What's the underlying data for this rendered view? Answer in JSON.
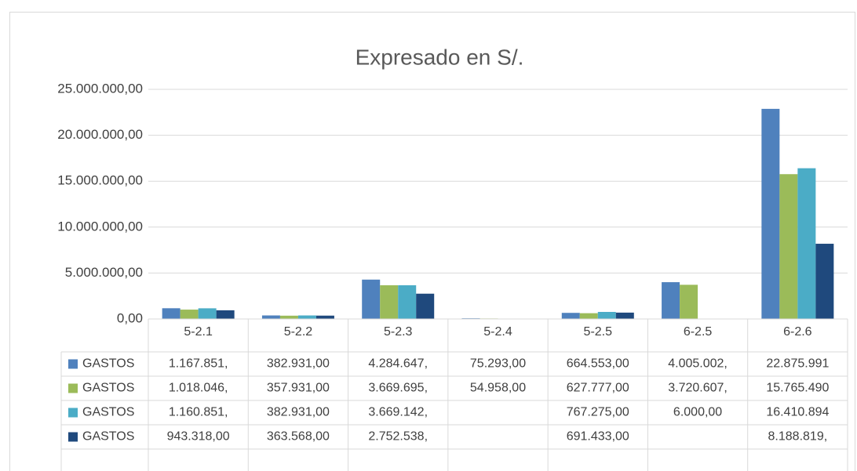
{
  "chart_data": {
    "type": "bar",
    "title": "Expresado en  S/.",
    "categories": [
      "5-2.1",
      "5-2.2",
      "5-2.3",
      "5-2.4",
      "5-2.5",
      "6-2.5",
      "6-2.6"
    ],
    "series": [
      {
        "name": "GASTOS",
        "color": "#4f81bd",
        "values": [
          1167851,
          382931,
          4284647,
          75293,
          664553,
          4005002,
          22875991
        ],
        "value_labels": [
          "1.167.851,",
          "382.931,00",
          "4.284.647,",
          "75.293,00",
          "664.553,00",
          "4.005.002,",
          "22.875.991"
        ]
      },
      {
        "name": "GASTOS",
        "color": "#9bbb59",
        "values": [
          1018046,
          357931,
          3669695,
          54958,
          627777,
          3720607,
          15765490
        ],
        "value_labels": [
          "1.018.046,",
          "357.931,00",
          "3.669.695,",
          "54.958,00",
          "627.777,00",
          "3.720.607,",
          "15.765.490"
        ]
      },
      {
        "name": "GASTOS",
        "color": "#4bacc6",
        "values": [
          1160851,
          382931,
          3669142,
          null,
          767275,
          6000,
          16410894
        ],
        "value_labels": [
          "1.160.851,",
          "382.931,00",
          "3.669.142,",
          null,
          "767.275,00",
          "6.000,00",
          "16.410.894"
        ]
      },
      {
        "name": "GASTOS",
        "color": "#1f497d",
        "values": [
          943318,
          363568,
          2752538,
          null,
          691433,
          null,
          8188819
        ],
        "value_labels": [
          "943.318,00",
          "363.568,00",
          "2.752.538,",
          null,
          "691.433,00",
          null,
          "8.188.819,"
        ]
      }
    ],
    "ylim": [
      0,
      25000000
    ],
    "yticks": [
      {
        "value": 0,
        "label": "0,00"
      },
      {
        "value": 5000000,
        "label": "5.000.000,00"
      },
      {
        "value": 10000000,
        "label": "10.000.000,00"
      },
      {
        "value": 15000000,
        "label": "15.000.000,00"
      },
      {
        "value": 20000000,
        "label": "20.000.000,00"
      },
      {
        "value": 25000000,
        "label": "25.000.000,00"
      }
    ],
    "grid": true
  }
}
